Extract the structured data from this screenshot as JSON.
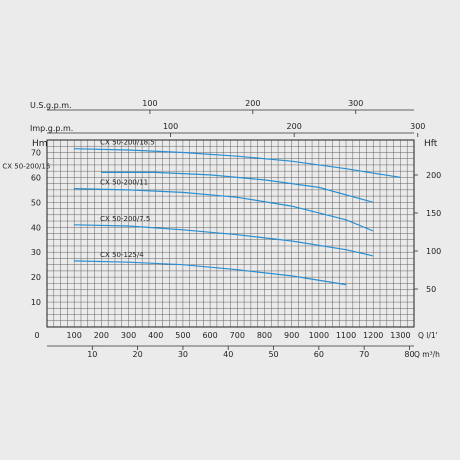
{
  "chart_data": {
    "type": "line",
    "title": "",
    "x_main": {
      "label": "Q  l/1'",
      "lim": [
        0,
        1350
      ],
      "ticks": [
        0,
        100,
        200,
        300,
        400,
        500,
        600,
        700,
        800,
        900,
        1000,
        1100,
        1200,
        1300
      ]
    },
    "x_m3h": {
      "label": "Q  m³/h",
      "ticks": [
        10,
        20,
        30,
        40,
        50,
        60,
        70,
        80
      ]
    },
    "x_usgpm": {
      "label": "U.S.g.p.m.",
      "ticks": [
        100,
        200,
        300
      ]
    },
    "x_impgpm": {
      "label": "Imp.g.p.m.",
      "ticks": [
        100,
        200,
        300
      ]
    },
    "y_m": {
      "label": "Hm",
      "lim": [
        0,
        75
      ],
      "ticks": [
        10,
        20,
        30,
        40,
        50,
        60,
        70
      ]
    },
    "y_ft": {
      "label": "Hft",
      "ticks": [
        50,
        100,
        150,
        200
      ]
    },
    "grid": true,
    "curves_color": "#2a8fd1",
    "series": [
      {
        "name": "CX 50-200/18.5",
        "x": [
          100,
          300,
          500,
          700,
          900,
          1100,
          1300
        ],
        "y": [
          71.5,
          71,
          70,
          68.5,
          66.5,
          63.5,
          60
        ]
      },
      {
        "name": "CX 50-200/15",
        "x": [
          200,
          400,
          600,
          800,
          1000,
          1200
        ],
        "y": [
          62,
          62,
          61,
          59,
          56,
          50
        ]
      },
      {
        "name": "CX 50-200/11",
        "x": [
          100,
          300,
          500,
          700,
          900,
          1100,
          1200
        ],
        "y": [
          55.5,
          55,
          54,
          52,
          48.5,
          43,
          38.5
        ]
      },
      {
        "name": "CX 50-200/7.5",
        "x": [
          100,
          300,
          500,
          700,
          900,
          1100,
          1200
        ],
        "y": [
          41,
          40.5,
          39,
          37,
          34.5,
          31,
          28.5
        ]
      },
      {
        "name": "CX 50-125/4",
        "x": [
          100,
          300,
          500,
          700,
          900,
          1100
        ],
        "y": [
          26.5,
          26,
          25,
          23,
          20.5,
          17
        ]
      }
    ]
  }
}
